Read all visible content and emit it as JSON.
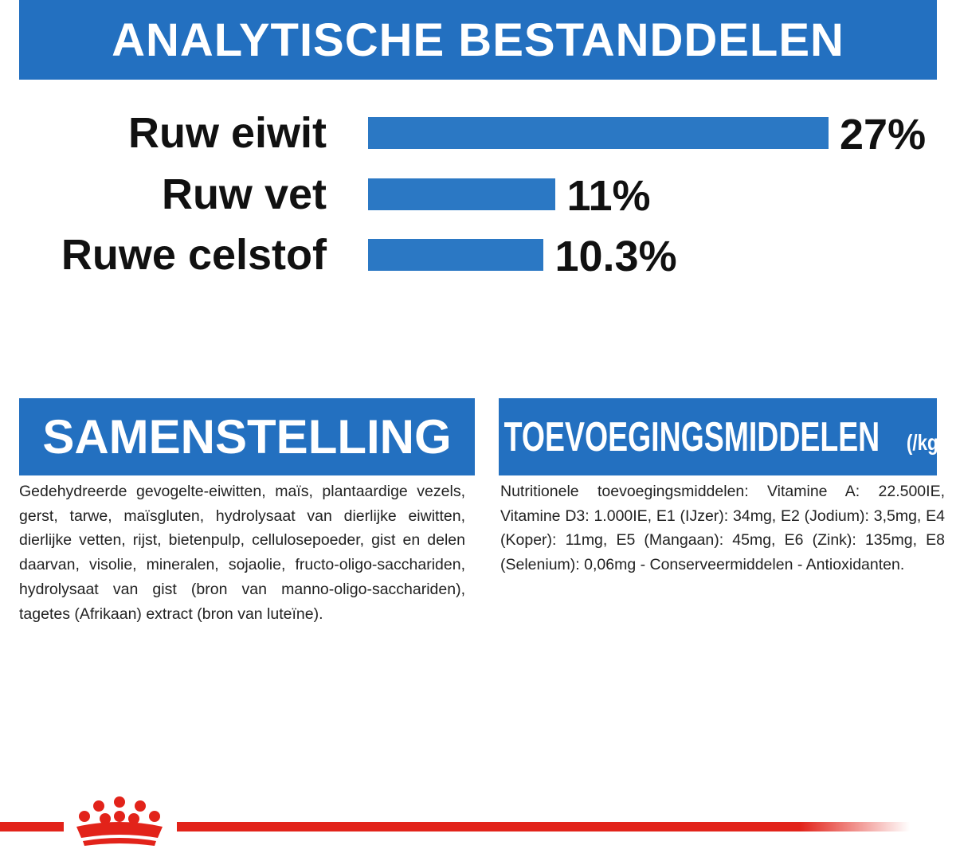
{
  "chart_data": {
    "type": "bar",
    "orientation": "horizontal",
    "title": "ANALYTISCHE BESTANDDELEN",
    "categories": [
      "Ruw eiwit",
      "Ruw vet",
      "Ruwe celstof"
    ],
    "values": [
      27,
      11,
      10.3
    ],
    "value_labels": [
      "27%",
      "11%",
      "10.3%"
    ],
    "color": "#2b78c4"
  },
  "composition": {
    "title": "SAMENSTELLING",
    "text": "Gedehydreerde gevogelte-eiwitten, maïs, plantaardige vezels, gerst, tarwe, maïsgluten, hydrolysaat van dierlijke eiwitten, dierlijke vetten, rijst, bietenpulp, cellulosepoeder, gist en delen daarvan, visolie, mineralen, sojaolie, fructo-oligo-sacchariden, hydrolysaat van gist (bron van manno-oligo-sacchariden), tagetes (Afrikaan) extract (bron van luteïne)."
  },
  "additives": {
    "title": "TOEVOEGINGSMIDDELEN",
    "unit": "(/kg)",
    "text": "Nutritionele toevoegingsmiddelen: Vitamine A: 22.500IE, Vitamine D3: 1.000IE, E1 (IJzer): 34mg, E2 (Jodium): 3,5mg, E4 (Koper): 11mg, E5 (Mangaan): 45mg, E6 (Zink): 135mg, E8 (Selenium): 0,06mg - Conserveermiddelen - Antioxidanten."
  }
}
